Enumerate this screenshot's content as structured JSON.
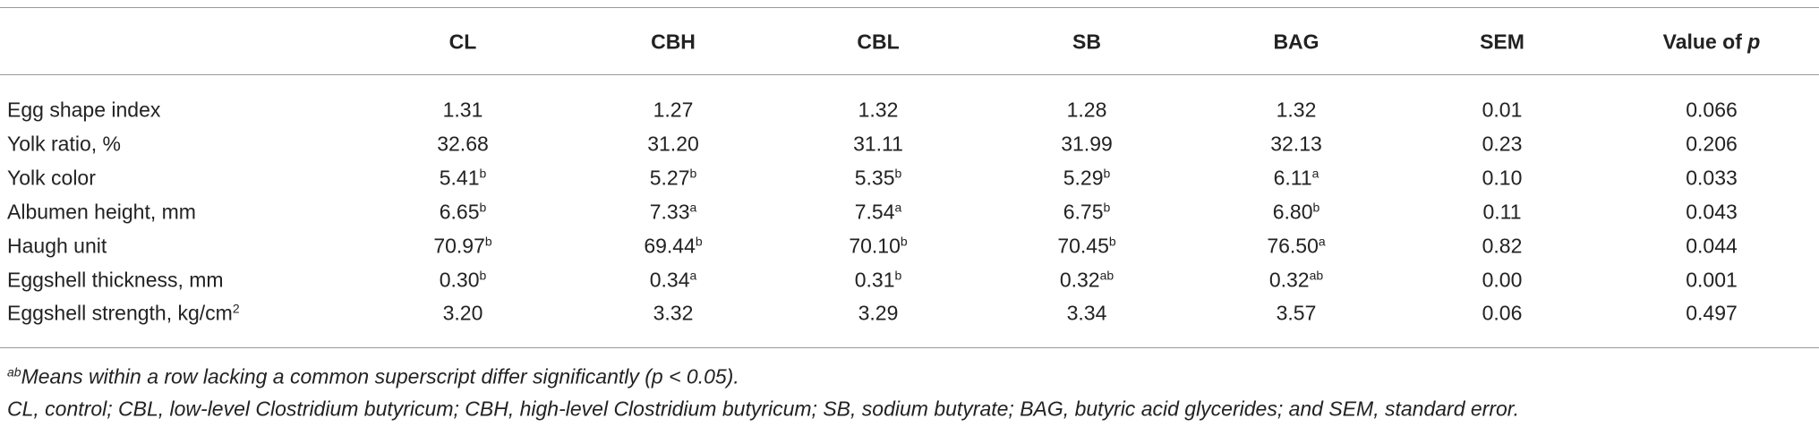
{
  "table": {
    "header": [
      {
        "text": "CL"
      },
      {
        "text": "CBH"
      },
      {
        "text": "CBL"
      },
      {
        "text": "SB"
      },
      {
        "text": "BAG"
      },
      {
        "text": "SEM"
      },
      {
        "text": "Value of",
        "italic": "p"
      }
    ],
    "rows": [
      {
        "label": {
          "text": "Egg shape index"
        },
        "cells": [
          {
            "text": "1.31"
          },
          {
            "text": "1.27"
          },
          {
            "text": "1.32"
          },
          {
            "text": "1.28"
          },
          {
            "text": "1.32"
          },
          {
            "text": "0.01"
          },
          {
            "text": "0.066"
          }
        ]
      },
      {
        "label": {
          "text": "Yolk ratio, %"
        },
        "cells": [
          {
            "text": "32.68"
          },
          {
            "text": "31.20"
          },
          {
            "text": "31.11"
          },
          {
            "text": "31.99"
          },
          {
            "text": "32.13"
          },
          {
            "text": "0.23"
          },
          {
            "text": "0.206"
          }
        ]
      },
      {
        "label": {
          "text": "Yolk color"
        },
        "cells": [
          {
            "text": "5.41",
            "sup": "b"
          },
          {
            "text": "5.27",
            "sup": "b"
          },
          {
            "text": "5.35",
            "sup": "b"
          },
          {
            "text": "5.29",
            "sup": "b"
          },
          {
            "text": "6.11",
            "sup": "a"
          },
          {
            "text": "0.10"
          },
          {
            "text": "0.033"
          }
        ]
      },
      {
        "label": {
          "text": "Albumen height, mm"
        },
        "cells": [
          {
            "text": "6.65",
            "sup": "b"
          },
          {
            "text": "7.33",
            "sup": "a"
          },
          {
            "text": "7.54",
            "sup": "a"
          },
          {
            "text": "6.75",
            "sup": "b"
          },
          {
            "text": "6.80",
            "sup": "b"
          },
          {
            "text": "0.11"
          },
          {
            "text": "0.043"
          }
        ]
      },
      {
        "label": {
          "text": "Haugh unit"
        },
        "cells": [
          {
            "text": "70.97",
            "sup": "b"
          },
          {
            "text": "69.44",
            "sup": "b"
          },
          {
            "text": "70.10",
            "sup": "b"
          },
          {
            "text": "70.45",
            "sup": "b"
          },
          {
            "text": "76.50",
            "sup": "a"
          },
          {
            "text": "0.82"
          },
          {
            "text": "0.044"
          }
        ]
      },
      {
        "label": {
          "text": "Eggshell thickness, mm"
        },
        "cells": [
          {
            "text": "0.30",
            "sup": "b"
          },
          {
            "text": "0.34",
            "sup": "a"
          },
          {
            "text": "0.31",
            "sup": "b"
          },
          {
            "text": "0.32",
            "sup": "ab"
          },
          {
            "text": "0.32",
            "sup": "ab"
          },
          {
            "text": "0.00"
          },
          {
            "text": "0.001"
          }
        ]
      },
      {
        "label": {
          "text": "Eggshell strength, kg/cm",
          "sup": "2"
        },
        "cells": [
          {
            "text": "3.20"
          },
          {
            "text": "3.32"
          },
          {
            "text": "3.29"
          },
          {
            "text": "3.34"
          },
          {
            "text": "3.57"
          },
          {
            "text": "0.06"
          },
          {
            "text": "0.497"
          }
        ]
      }
    ]
  },
  "footnotes": [
    {
      "sup": "ab",
      "text": "Means within a row lacking a common superscript differ significantly (p < 0.05)."
    },
    {
      "text": "CL, control; CBL, low-level Clostridium butyricum; CBH, high-level Clostridium butyricum; SB, sodium butyrate; BAG, butyric acid glycerides; and SEM, standard error."
    }
  ]
}
